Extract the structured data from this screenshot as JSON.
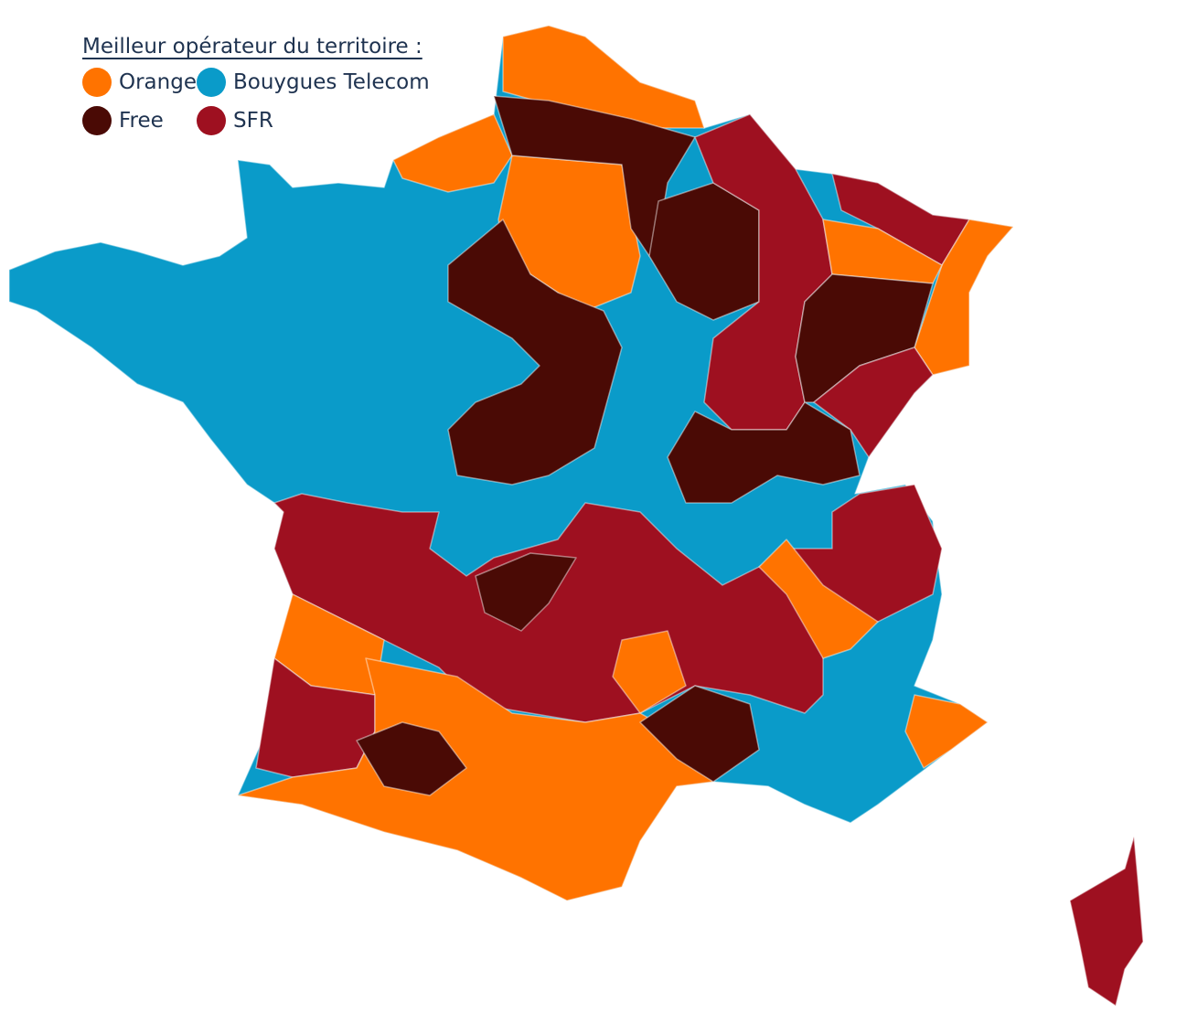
{
  "legend": {
    "title": "Meilleur opérateur du territoire :",
    "items": [
      {
        "name": "Orange",
        "color": "#ff7300"
      },
      {
        "name": "Bouygues Telecom",
        "color": "#0a9bc9"
      },
      {
        "name": "Free",
        "color": "#4a0a05"
      },
      {
        "name": "SFR",
        "color": "#9e1020"
      }
    ]
  }
}
